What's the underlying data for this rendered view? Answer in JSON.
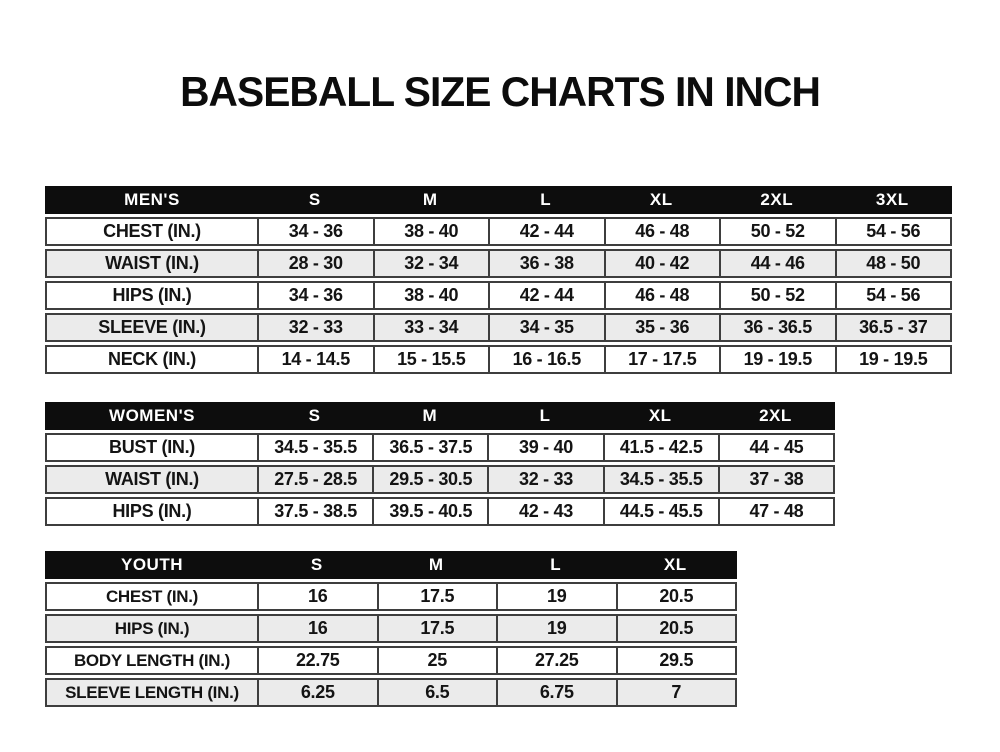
{
  "page": {
    "title": "BASEBALL SIZE CHARTS IN INCH"
  },
  "colors": {
    "header_bg": "#0d0d0d",
    "header_text": "#ffffff",
    "row_bg": "#ffffff",
    "row_alt_bg": "#ebebeb",
    "border": "#3e3e3e",
    "text": "#141414",
    "page_bg": "#ffffff"
  },
  "tables": [
    {
      "id": "mens",
      "header_label": "MEN'S",
      "sizes": [
        "S",
        "M",
        "L",
        "XL",
        "2XL",
        "3XL"
      ],
      "rows": [
        {
          "label": "CHEST (IN.)",
          "values": [
            "34 - 36",
            "38 - 40",
            "42 - 44",
            "46 - 48",
            "50 - 52",
            "54 - 56"
          ]
        },
        {
          "label": "WAIST (IN.)",
          "values": [
            "28 - 30",
            "32 - 34",
            "36 - 38",
            "40 - 42",
            "44 - 46",
            "48 - 50"
          ]
        },
        {
          "label": "HIPS (IN.)",
          "values": [
            "34 - 36",
            "38 - 40",
            "42 - 44",
            "46 - 48",
            "50 - 52",
            "54 - 56"
          ]
        },
        {
          "label": "SLEEVE (IN.)",
          "values": [
            "32 - 33",
            "33 - 34",
            "34 - 35",
            "35 - 36",
            "36 - 36.5",
            "36.5 - 37"
          ]
        },
        {
          "label": "NECK (IN.)",
          "values": [
            "14 - 14.5",
            "15 - 15.5",
            "16 - 16.5",
            "17 - 17.5",
            "19 - 19.5",
            "19 - 19.5"
          ]
        }
      ]
    },
    {
      "id": "womens",
      "header_label": "WOMEN'S",
      "sizes": [
        "S",
        "M",
        "L",
        "XL",
        "2XL"
      ],
      "rows": [
        {
          "label": "BUST (IN.)",
          "values": [
            "34.5 - 35.5",
            "36.5 - 37.5",
            "39 - 40",
            "41.5 - 42.5",
            "44 - 45"
          ]
        },
        {
          "label": "WAIST (IN.)",
          "values": [
            "27.5 - 28.5",
            "29.5 - 30.5",
            "32 - 33",
            "34.5 - 35.5",
            "37 - 38"
          ]
        },
        {
          "label": "HIPS (IN.)",
          "values": [
            "37.5 - 38.5",
            "39.5 - 40.5",
            "42 - 43",
            "44.5 - 45.5",
            "47 - 48"
          ]
        }
      ]
    },
    {
      "id": "youth",
      "header_label": "YOUTH",
      "sizes": [
        "S",
        "M",
        "L",
        "XL"
      ],
      "rows": [
        {
          "label": "CHEST (IN.)",
          "values": [
            "16",
            "17.5",
            "19",
            "20.5"
          ]
        },
        {
          "label": "HIPS (IN.)",
          "values": [
            "16",
            "17.5",
            "19",
            "20.5"
          ]
        },
        {
          "label": "BODY LENGTH (IN.)",
          "values": [
            "22.75",
            "25",
            "27.25",
            "29.5"
          ]
        },
        {
          "label": "SLEEVE LENGTH (IN.)",
          "values": [
            "6.25",
            "6.5",
            "6.75",
            "7"
          ]
        }
      ]
    }
  ]
}
